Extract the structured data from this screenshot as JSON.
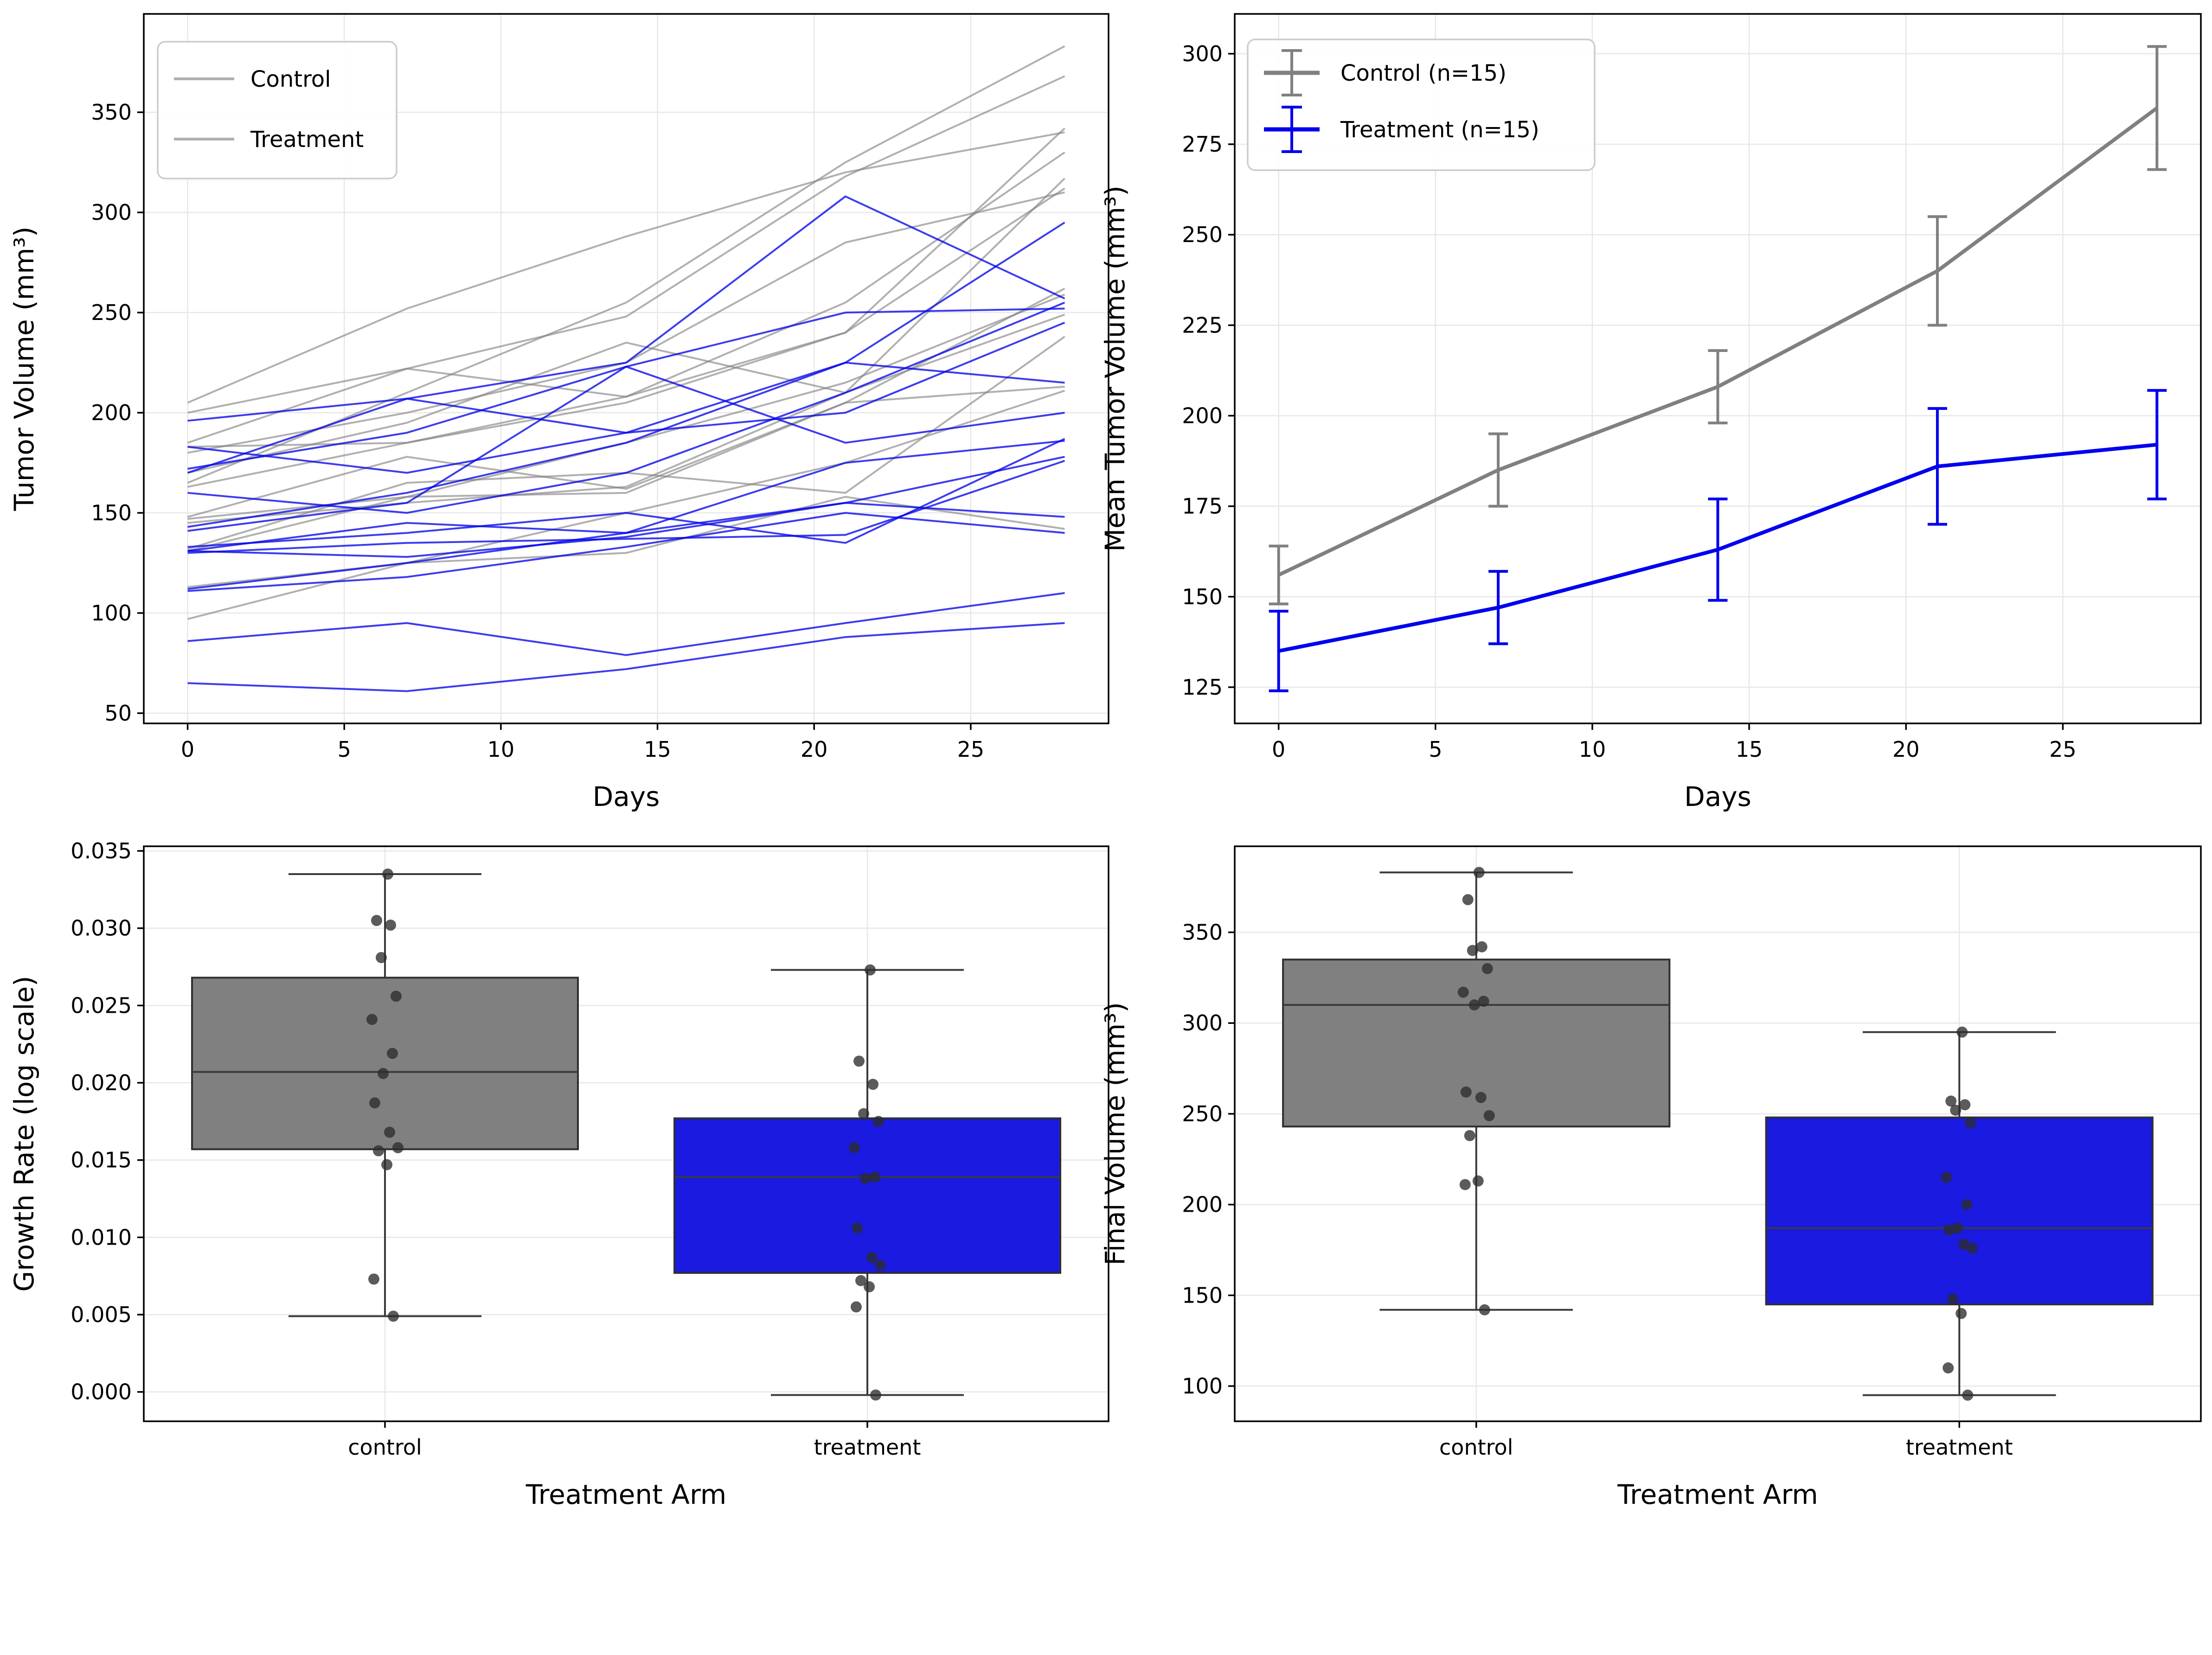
{
  "figure_background": "#ffffff",
  "accent_colors": {
    "control_gray": "#808080",
    "treatment_blue": "#0000ee",
    "grid": "#e7e7e7",
    "spine": "#000000",
    "legend_border": "#cccccc",
    "box_edge": "#2f2f2f",
    "jitter_point": "#333333",
    "legend_swatch_gray": "#b0b0b0"
  },
  "chart_data": [
    {
      "id": "individual-trajectories",
      "type": "line",
      "title": "",
      "xlabel": "Days",
      "ylabel": "Tumor Volume (mm³)",
      "x": [
        0,
        7,
        14,
        21,
        28
      ],
      "xticks": [
        0,
        5,
        10,
        15,
        20,
        25
      ],
      "yticks": [
        50,
        100,
        150,
        200,
        250,
        300,
        350
      ],
      "xlim": [
        -1.4,
        29.4
      ],
      "ylim": [
        44.9,
        399.1
      ],
      "grid": true,
      "legend_position": "upper-left",
      "legend": [
        {
          "label": "Control",
          "swatch_color": "#b0b0b0"
        },
        {
          "label": "Treatment",
          "swatch_color": "#b0b0b0"
        }
      ],
      "series": [
        {
          "name": "control-1",
          "arm": "control",
          "values": [
            205,
            252,
            288,
            320,
            340
          ]
        },
        {
          "name": "control-2",
          "arm": "control",
          "values": [
            165,
            210,
            255,
            325,
            383
          ]
        },
        {
          "name": "control-3",
          "arm": "control",
          "values": [
            200,
            222,
            248,
            318,
            368
          ]
        },
        {
          "name": "control-4",
          "arm": "control",
          "values": [
            185,
            222,
            208,
            255,
            330
          ]
        },
        {
          "name": "control-5",
          "arm": "control",
          "values": [
            183,
            185,
            205,
            240,
            312
          ]
        },
        {
          "name": "control-6",
          "arm": "control",
          "values": [
            180,
            200,
            225,
            285,
            310
          ]
        },
        {
          "name": "control-7",
          "arm": "control",
          "values": [
            170,
            195,
            235,
            210,
            317
          ]
        },
        {
          "name": "control-8",
          "arm": "control",
          "values": [
            163,
            185,
            208,
            240,
            342
          ]
        },
        {
          "name": "control-9",
          "arm": "control",
          "values": [
            148,
            178,
            162,
            205,
            262
          ]
        },
        {
          "name": "control-10",
          "arm": "control",
          "values": [
            147,
            158,
            185,
            215,
            259
          ]
        },
        {
          "name": "control-11",
          "arm": "control",
          "values": [
            145,
            155,
            163,
            210,
            249
          ]
        },
        {
          "name": "control-12",
          "arm": "control",
          "values": [
            132,
            165,
            170,
            160,
            238
          ]
        },
        {
          "name": "control-13",
          "arm": "control",
          "values": [
            131,
            158,
            160,
            205,
            213
          ]
        },
        {
          "name": "control-14",
          "arm": "control",
          "values": [
            113,
            125,
            150,
            175,
            211
          ]
        },
        {
          "name": "control-15",
          "arm": "control",
          "values": [
            97,
            125,
            130,
            158,
            142
          ]
        },
        {
          "name": "treatment-1",
          "arm": "treatment",
          "values": [
            196,
            207,
            225,
            308,
            257
          ]
        },
        {
          "name": "treatment-2",
          "arm": "treatment",
          "values": [
            183,
            170,
            190,
            225,
            295
          ]
        },
        {
          "name": "treatment-3",
          "arm": "treatment",
          "values": [
            172,
            190,
            223,
            250,
            252
          ]
        },
        {
          "name": "treatment-4",
          "arm": "treatment",
          "values": [
            170,
            207,
            190,
            200,
            245
          ]
        },
        {
          "name": "treatment-5",
          "arm": "treatment",
          "values": [
            160,
            150,
            170,
            210,
            255
          ]
        },
        {
          "name": "treatment-6",
          "arm": "treatment",
          "values": [
            143,
            160,
            185,
            225,
            215
          ]
        },
        {
          "name": "treatment-7",
          "arm": "treatment",
          "values": [
            141,
            155,
            223,
            185,
            200
          ]
        },
        {
          "name": "treatment-8",
          "arm": "treatment",
          "values": [
            133,
            140,
            150,
            135,
            187
          ]
        },
        {
          "name": "treatment-9",
          "arm": "treatment",
          "values": [
            131,
            145,
            140,
            175,
            186
          ]
        },
        {
          "name": "treatment-10",
          "arm": "treatment",
          "values": [
            131,
            128,
            138,
            155,
            178
          ]
        },
        {
          "name": "treatment-11",
          "arm": "treatment",
          "values": [
            130,
            135,
            137,
            139,
            176
          ]
        },
        {
          "name": "treatment-12",
          "arm": "treatment",
          "values": [
            112,
            125,
            140,
            155,
            148
          ]
        },
        {
          "name": "treatment-13",
          "arm": "treatment",
          "values": [
            111,
            118,
            133,
            150,
            140
          ]
        },
        {
          "name": "treatment-14",
          "arm": "treatment",
          "values": [
            86,
            95,
            79,
            95,
            110
          ]
        },
        {
          "name": "treatment-15",
          "arm": "treatment",
          "values": [
            65,
            61,
            72,
            88,
            95
          ]
        }
      ]
    },
    {
      "id": "mean-tumor-volume",
      "type": "errorbar-line",
      "title": "",
      "xlabel": "Days",
      "ylabel": "Mean Tumor Volume (mm³)",
      "x": [
        0,
        7,
        14,
        21,
        28
      ],
      "xticks": [
        0,
        5,
        10,
        15,
        20,
        25
      ],
      "yticks": [
        125,
        150,
        175,
        200,
        225,
        250,
        275,
        300
      ],
      "xlim": [
        -1.4,
        29.4
      ],
      "ylim": [
        115,
        311
      ],
      "grid": true,
      "legend_position": "upper-left",
      "legend": [
        {
          "label": "Control (n=15)",
          "swatch_color": "#808080"
        },
        {
          "label": "Treatment (n=15)",
          "swatch_color": "#0000ee"
        }
      ],
      "series": [
        {
          "name": "Control (n=15)",
          "color": "#808080",
          "mean": [
            156,
            185,
            208,
            240,
            285
          ],
          "err": [
            8,
            10,
            10,
            15,
            17
          ]
        },
        {
          "name": "Treatment (n=15)",
          "color": "#0000ee",
          "mean": [
            135,
            147,
            163,
            186,
            192
          ],
          "err": [
            11,
            10,
            14,
            16,
            15
          ]
        }
      ]
    },
    {
      "id": "growth-rate-box",
      "type": "box",
      "title": "",
      "xlabel": "Treatment Arm",
      "ylabel": "Growth Rate (log scale)",
      "categories": [
        "control",
        "treatment"
      ],
      "yticks": [
        0.0,
        0.005,
        0.01,
        0.015,
        0.02,
        0.025,
        0.03,
        0.035
      ],
      "ytick_decimals": 3,
      "xlim": [
        -0.5,
        1.5
      ],
      "ylim": [
        -0.0019,
        0.0353
      ],
      "grid": true,
      "boxes": [
        {
          "category": "control",
          "color": "#808080",
          "whisker_low": 0.0049,
          "q1": 0.0157,
          "median": 0.0207,
          "q3": 0.0268,
          "whisker_high": 0.0335,
          "points": [
            0.0335,
            0.0305,
            0.0302,
            0.0281,
            0.0256,
            0.0241,
            0.0219,
            0.0206,
            0.0187,
            0.0168,
            0.0158,
            0.0156,
            0.0147,
            0.0073,
            0.0049
          ]
        },
        {
          "category": "treatment",
          "color": "#1a1ae0",
          "whisker_low": -0.0002,
          "q1": 0.0077,
          "median": 0.0139,
          "q3": 0.0177,
          "whisker_high": 0.0273,
          "points": [
            0.0273,
            0.0214,
            0.0199,
            0.018,
            0.0175,
            0.0158,
            0.0139,
            0.0138,
            0.0106,
            0.0087,
            0.0082,
            0.0072,
            0.0068,
            0.0055,
            -0.0002
          ]
        }
      ]
    },
    {
      "id": "final-volume-box",
      "type": "box",
      "title": "",
      "xlabel": "Treatment Arm",
      "ylabel": "Final Volume (mm³)",
      "categories": [
        "control",
        "treatment"
      ],
      "yticks": [
        100,
        150,
        200,
        250,
        300,
        350
      ],
      "ytick_decimals": 0,
      "xlim": [
        -0.5,
        1.5
      ],
      "ylim": [
        80.6,
        397.4
      ],
      "grid": true,
      "boxes": [
        {
          "category": "control",
          "color": "#808080",
          "whisker_low": 142,
          "q1": 243,
          "median": 310,
          "q3": 335,
          "whisker_high": 383,
          "points": [
            383,
            368,
            342,
            340,
            330,
            317,
            312,
            310,
            262,
            259,
            249,
            238,
            213,
            211,
            142
          ]
        },
        {
          "category": "treatment",
          "color": "#1a1ae0",
          "whisker_low": 95,
          "q1": 145,
          "median": 187,
          "q3": 248,
          "whisker_high": 295,
          "points": [
            295,
            257,
            255,
            252,
            245,
            215,
            200,
            187,
            186,
            178,
            176,
            148,
            140,
            110,
            95
          ]
        }
      ]
    }
  ]
}
